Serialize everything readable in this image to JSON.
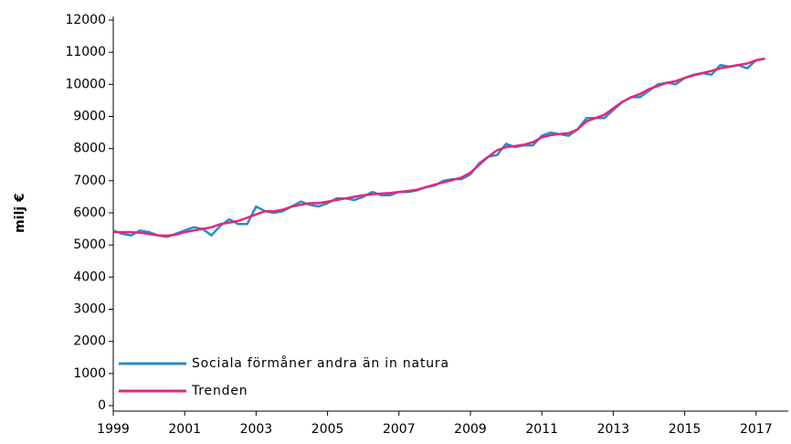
{
  "chart_data": {
    "type": "line",
    "ylabel": "milj €",
    "x": [
      1999,
      1999.25,
      1999.5,
      1999.75,
      2000,
      2000.25,
      2000.5,
      2000.75,
      2001,
      2001.25,
      2001.5,
      2001.75,
      2002,
      2002.25,
      2002.5,
      2002.75,
      2003,
      2003.25,
      2003.5,
      2003.75,
      2004,
      2004.25,
      2004.5,
      2004.75,
      2005,
      2005.25,
      2005.5,
      2005.75,
      2006,
      2006.25,
      2006.5,
      2006.75,
      2007,
      2007.25,
      2007.5,
      2007.75,
      2008,
      2008.25,
      2008.5,
      2008.75,
      2009,
      2009.25,
      2009.5,
      2009.75,
      2010,
      2010.25,
      2010.5,
      2010.75,
      2011,
      2011.25,
      2011.5,
      2011.75,
      2012,
      2012.25,
      2012.5,
      2012.75,
      2013,
      2013.25,
      2013.5,
      2013.75,
      2014,
      2014.25,
      2014.5,
      2014.75,
      2015,
      2015.25,
      2015.5,
      2015.75,
      2016,
      2016.25,
      2016.5,
      2016.75,
      2017,
      2017.25
    ],
    "series": [
      {
        "name": "Sociala förmåner andra än in natura",
        "color": "#2b8cc4",
        "values": [
          5450,
          5350,
          5300,
          5450,
          5400,
          5300,
          5250,
          5350,
          5450,
          5550,
          5500,
          5300,
          5600,
          5800,
          5650,
          5650,
          6200,
          6050,
          6000,
          6050,
          6200,
          6350,
          6250,
          6200,
          6300,
          6450,
          6450,
          6400,
          6500,
          6650,
          6550,
          6550,
          6650,
          6650,
          6700,
          6800,
          6850,
          7000,
          7050,
          7050,
          7200,
          7550,
          7750,
          7800,
          8150,
          8050,
          8100,
          8100,
          8400,
          8500,
          8450,
          8400,
          8600,
          8950,
          8950,
          8950,
          9200,
          9450,
          9600,
          9600,
          9800,
          10000,
          10050,
          10000,
          10200,
          10300,
          10350,
          10300,
          10600,
          10550,
          10600,
          10500,
          10750,
          10800
        ]
      },
      {
        "name": "Trenden",
        "color": "#e0287c",
        "values": [
          5400,
          5400,
          5400,
          5380,
          5340,
          5300,
          5290,
          5320,
          5400,
          5450,
          5500,
          5550,
          5650,
          5700,
          5750,
          5850,
          5950,
          6050,
          6050,
          6100,
          6200,
          6250,
          6300,
          6300,
          6350,
          6400,
          6450,
          6500,
          6550,
          6580,
          6600,
          6620,
          6650,
          6680,
          6720,
          6800,
          6880,
          6950,
          7020,
          7100,
          7250,
          7500,
          7750,
          7950,
          8050,
          8080,
          8120,
          8200,
          8350,
          8420,
          8450,
          8480,
          8600,
          8850,
          8950,
          9050,
          9250,
          9450,
          9600,
          9700,
          9850,
          9950,
          10050,
          10100,
          10200,
          10280,
          10350,
          10420,
          10500,
          10550,
          10600,
          10650,
          10750,
          10800
        ]
      }
    ],
    "xlim": [
      1999,
      2017.9
    ],
    "xticks": [
      1999,
      2001,
      2003,
      2005,
      2007,
      2009,
      2011,
      2013,
      2015,
      2017
    ],
    "ylim": [
      0,
      12000
    ],
    "yticks": [
      0,
      1000,
      2000,
      3000,
      4000,
      5000,
      6000,
      7000,
      8000,
      9000,
      10000,
      11000,
      12000
    ],
    "grid": false,
    "legend": "lower left"
  }
}
